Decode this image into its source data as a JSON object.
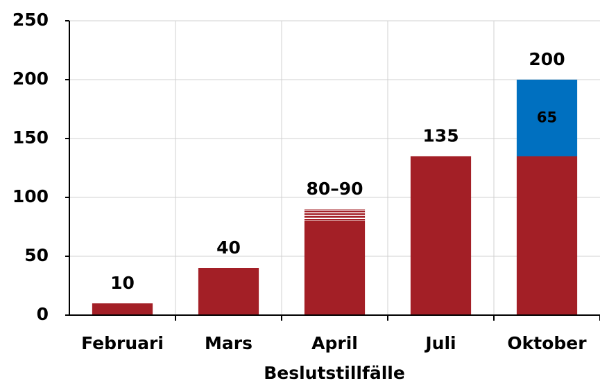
{
  "chart_data": {
    "type": "stacked_bar",
    "x_label": "Beslutstillfälle",
    "categories": [
      "Februari",
      "Mars",
      "April",
      "Juli",
      "Oktober"
    ],
    "series": [
      {
        "color": "#a31f26",
        "values": [
          10,
          40,
          80,
          135,
          135
        ]
      },
      {
        "color": "#a31f26",
        "striped": true,
        "values": [
          null,
          null,
          10,
          null,
          null
        ]
      },
      {
        "color": "#0070c0",
        "values": [
          null,
          null,
          null,
          null,
          65
        ],
        "show_value_labels": true
      }
    ],
    "total_labels": [
      "10",
      "40",
      "80–90",
      "135",
      "200"
    ],
    "ylim": [
      0,
      250
    ],
    "yticks": [
      0,
      50,
      100,
      150,
      200,
      250
    ],
    "grid": true
  }
}
